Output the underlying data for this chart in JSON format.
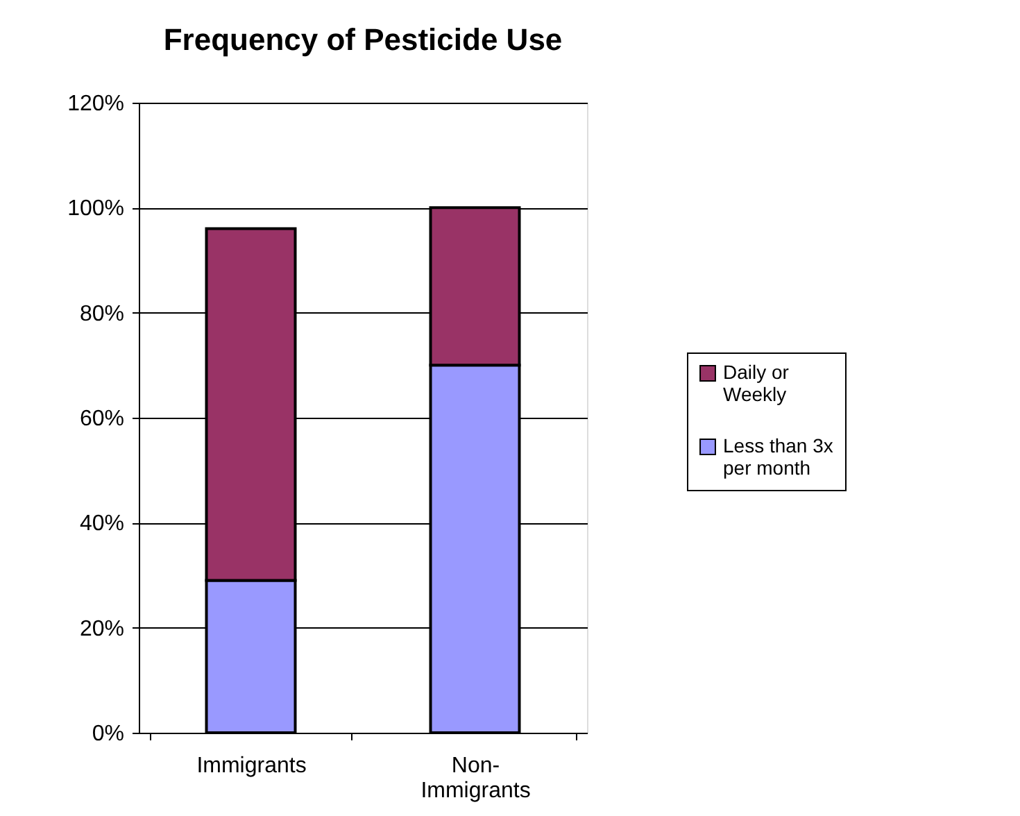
{
  "chart_data": {
    "type": "bar",
    "title": "Frequency of Pesticide Use",
    "categories": [
      "Immigrants",
      "Non-Immigrants"
    ],
    "stacked": true,
    "series": [
      {
        "name": "Less than 3x per month",
        "color": "#9999ff",
        "values": [
          29,
          70
        ]
      },
      {
        "name": "Daily or Weekly",
        "color": "#993366",
        "values": [
          67,
          30
        ]
      }
    ],
    "ylim": [
      0,
      120
    ],
    "yticks": [
      {
        "value": 0,
        "label": "0%"
      },
      {
        "value": 20,
        "label": "20%"
      },
      {
        "value": 40,
        "label": "40%"
      },
      {
        "value": 60,
        "label": "60%"
      },
      {
        "value": 80,
        "label": "80%"
      },
      {
        "value": 100,
        "label": "100%"
      },
      {
        "value": 120,
        "label": "120%"
      }
    ],
    "grid": "y",
    "legend": "right"
  }
}
